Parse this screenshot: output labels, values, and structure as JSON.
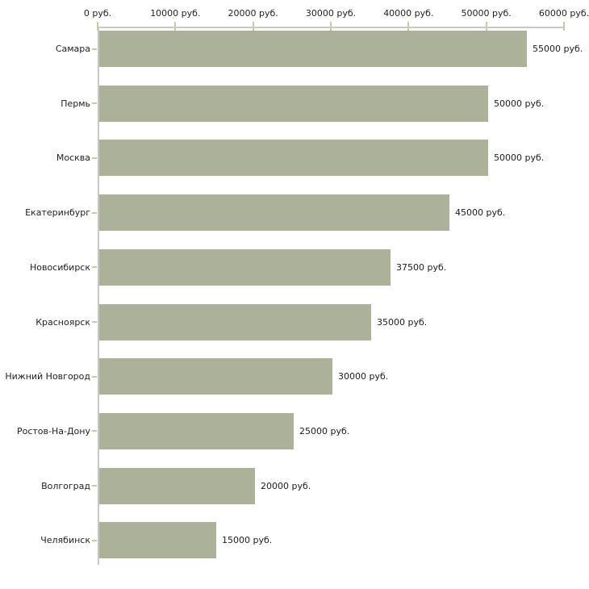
{
  "chart_data": {
    "type": "bar",
    "orientation": "horizontal",
    "title": "",
    "xlabel": "",
    "ylabel": "",
    "categories": [
      "Самара",
      "Пермь",
      "Москва",
      "Екатеринбург",
      "Новосибирск",
      "Красноярск",
      "Нижний Новгород",
      "Ростов-На-Дону",
      "Волгоград",
      "Челябинск"
    ],
    "values": [
      55000,
      50000,
      50000,
      45000,
      37500,
      35000,
      30000,
      25000,
      20000,
      15000
    ],
    "value_labels": [
      "55000 руб.",
      "50000 руб.",
      "50000 руб.",
      "45000 руб.",
      "37500 руб.",
      "35000 руб.",
      "30000 руб.",
      "25000 руб.",
      "20000 руб.",
      "15000 руб."
    ],
    "x_axis": {
      "position": "top",
      "min": 0,
      "max": 60000,
      "ticks": [
        0,
        10000,
        20000,
        30000,
        40000,
        50000,
        60000
      ],
      "tick_labels": [
        "0 руб.",
        "10000 руб.",
        "20000 руб.",
        "30000 руб.",
        "40000 руб.",
        "50000 руб.",
        "60000 руб."
      ]
    },
    "grid": false,
    "legend": "none",
    "colors": {
      "bar": "#acb199",
      "axis_line": "#c8c8c8",
      "tick_mark": "#c9c99e",
      "text": "#222222",
      "background": "#ffffff"
    }
  }
}
